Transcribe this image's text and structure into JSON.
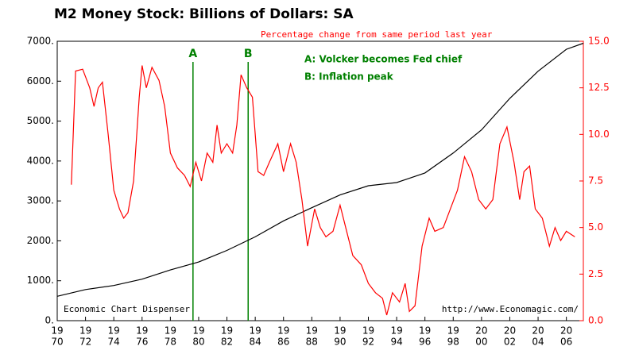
{
  "chart_data": {
    "type": "line",
    "title": "M2 Money Stock: Billions of Dollars: SA",
    "subtitle": "Percentage change from same period last year",
    "annotations": [
      "A: Volcker becomes Fed chief",
      "B: Inflation peak"
    ],
    "footer_left": "Economic Chart Dispenser",
    "footer_right": "http://www.Economagic.com/",
    "markers": [
      {
        "x": 1979.6,
        "label": "A",
        "color": "#008000"
      },
      {
        "x": 1983.5,
        "label": "B",
        "color": "#008000"
      }
    ],
    "xlim": [
      1970,
      2007.2
    ],
    "xticks": [
      {
        "value": 1970,
        "label": [
          "19",
          "70"
        ]
      },
      {
        "value": 1972,
        "label": [
          "19",
          "72"
        ]
      },
      {
        "value": 1974,
        "label": [
          "19",
          "74"
        ]
      },
      {
        "value": 1976,
        "label": [
          "19",
          "76"
        ]
      },
      {
        "value": 1978,
        "label": [
          "19",
          "78"
        ]
      },
      {
        "value": 1980,
        "label": [
          "19",
          "80"
        ]
      },
      {
        "value": 1982,
        "label": [
          "19",
          "82"
        ]
      },
      {
        "value": 1984,
        "label": [
          "19",
          "84"
        ]
      },
      {
        "value": 1986,
        "label": [
          "19",
          "86"
        ]
      },
      {
        "value": 1988,
        "label": [
          "19",
          "88"
        ]
      },
      {
        "value": 1990,
        "label": [
          "19",
          "90"
        ]
      },
      {
        "value": 1992,
        "label": [
          "19",
          "92"
        ]
      },
      {
        "value": 1994,
        "label": [
          "19",
          "94"
        ]
      },
      {
        "value": 1996,
        "label": [
          "19",
          "96"
        ]
      },
      {
        "value": 1998,
        "label": [
          "19",
          "98"
        ]
      },
      {
        "value": 2000,
        "label": [
          "20",
          "00"
        ]
      },
      {
        "value": 2002,
        "label": [
          "20",
          "02"
        ]
      },
      {
        "value": 2004,
        "label": [
          "20",
          "04"
        ]
      },
      {
        "value": 2006,
        "label": [
          "20",
          "06"
        ]
      }
    ],
    "ylim": [
      0,
      7000
    ],
    "yticks": [
      {
        "value": 0,
        "label": "0."
      },
      {
        "value": 1000,
        "label": "1000."
      },
      {
        "value": 2000,
        "label": "2000."
      },
      {
        "value": 3000,
        "label": "3000."
      },
      {
        "value": 4000,
        "label": "4000."
      },
      {
        "value": 5000,
        "label": "5000."
      },
      {
        "value": 6000,
        "label": "6000."
      },
      {
        "value": 7000,
        "label": "7000."
      }
    ],
    "y2lim": [
      0,
      15
    ],
    "y2ticks": [
      {
        "value": 0,
        "label": "0.0"
      },
      {
        "value": 2.5,
        "label": "2.5"
      },
      {
        "value": 5,
        "label": "5.0"
      },
      {
        "value": 7.5,
        "label": "7.5"
      },
      {
        "value": 10,
        "label": "10.0"
      },
      {
        "value": 12.5,
        "label": "12.5"
      },
      {
        "value": 15,
        "label": "15.0"
      }
    ],
    "y2color": "#ff0000",
    "series": [
      {
        "color": "#000000",
        "x": [
          1970,
          1972,
          1974,
          1976,
          1978,
          1980,
          1982,
          1984,
          1986,
          1988,
          1990,
          1992,
          1994,
          1996,
          1998,
          2000,
          2002,
          2004,
          2006,
          2007.2
        ],
        "values": [
          610,
          780,
          880,
          1040,
          1270,
          1470,
          1760,
          2100,
          2500,
          2830,
          3150,
          3380,
          3460,
          3700,
          4200,
          4780,
          5570,
          6250,
          6800,
          6950
        ]
      },
      {
        "color": "#ff0000",
        "axis": "y2",
        "x": [
          1971.0,
          1971.3,
          1971.8,
          1972.3,
          1972.6,
          1972.9,
          1973.2,
          1973.6,
          1974.0,
          1974.4,
          1974.7,
          1975.0,
          1975.4,
          1975.8,
          1976.0,
          1976.3,
          1976.7,
          1977.2,
          1977.6,
          1978.0,
          1978.5,
          1979.0,
          1979.4,
          1979.8,
          1980.2,
          1980.6,
          1981.0,
          1981.3,
          1981.6,
          1982.0,
          1982.4,
          1982.7,
          1983.0,
          1983.4,
          1983.8,
          1984.2,
          1984.6,
          1985.0,
          1985.6,
          1986.0,
          1986.5,
          1986.9,
          1987.3,
          1987.7,
          1988.2,
          1988.6,
          1989.0,
          1989.5,
          1990.0,
          1990.4,
          1990.9,
          1991.5,
          1992.0,
          1992.5,
          1993.0,
          1993.3,
          1993.7,
          1994.2,
          1994.6,
          1994.9,
          1995.3,
          1995.8,
          1996.3,
          1996.7,
          1997.3,
          1997.8,
          1998.3,
          1998.8,
          1999.3,
          1999.8,
          2000.3,
          2000.8,
          2001.3,
          2001.8,
          2002.3,
          2002.7,
          2003.0,
          2003.4,
          2003.8,
          2004.3,
          2004.8,
          2005.2,
          2005.6,
          2006.0,
          2006.6
        ],
        "values": [
          7.3,
          13.4,
          13.5,
          12.5,
          11.5,
          12.5,
          12.8,
          10.0,
          7.0,
          6.0,
          5.5,
          5.8,
          7.5,
          12.0,
          13.7,
          12.5,
          13.6,
          12.9,
          11.5,
          9.0,
          8.2,
          7.8,
          7.2,
          8.5,
          7.5,
          9.0,
          8.5,
          10.5,
          9.0,
          9.5,
          9.0,
          10.5,
          13.2,
          12.5,
          12.0,
          8.0,
          7.8,
          8.5,
          9.5,
          8.0,
          9.5,
          8.5,
          6.5,
          4.0,
          6.0,
          5.0,
          4.5,
          4.8,
          6.2,
          5.0,
          3.5,
          3.0,
          2.0,
          1.5,
          1.2,
          0.3,
          1.5,
          1.0,
          2.0,
          0.5,
          0.8,
          4.0,
          5.5,
          4.8,
          5.0,
          6.0,
          7.0,
          8.8,
          8.0,
          6.5,
          6.0,
          6.5,
          9.5,
          10.4,
          8.5,
          6.5,
          8.0,
          8.3,
          6.0,
          5.5,
          4.0,
          5.0,
          4.3,
          4.8,
          4.5
        ]
      }
    ]
  }
}
